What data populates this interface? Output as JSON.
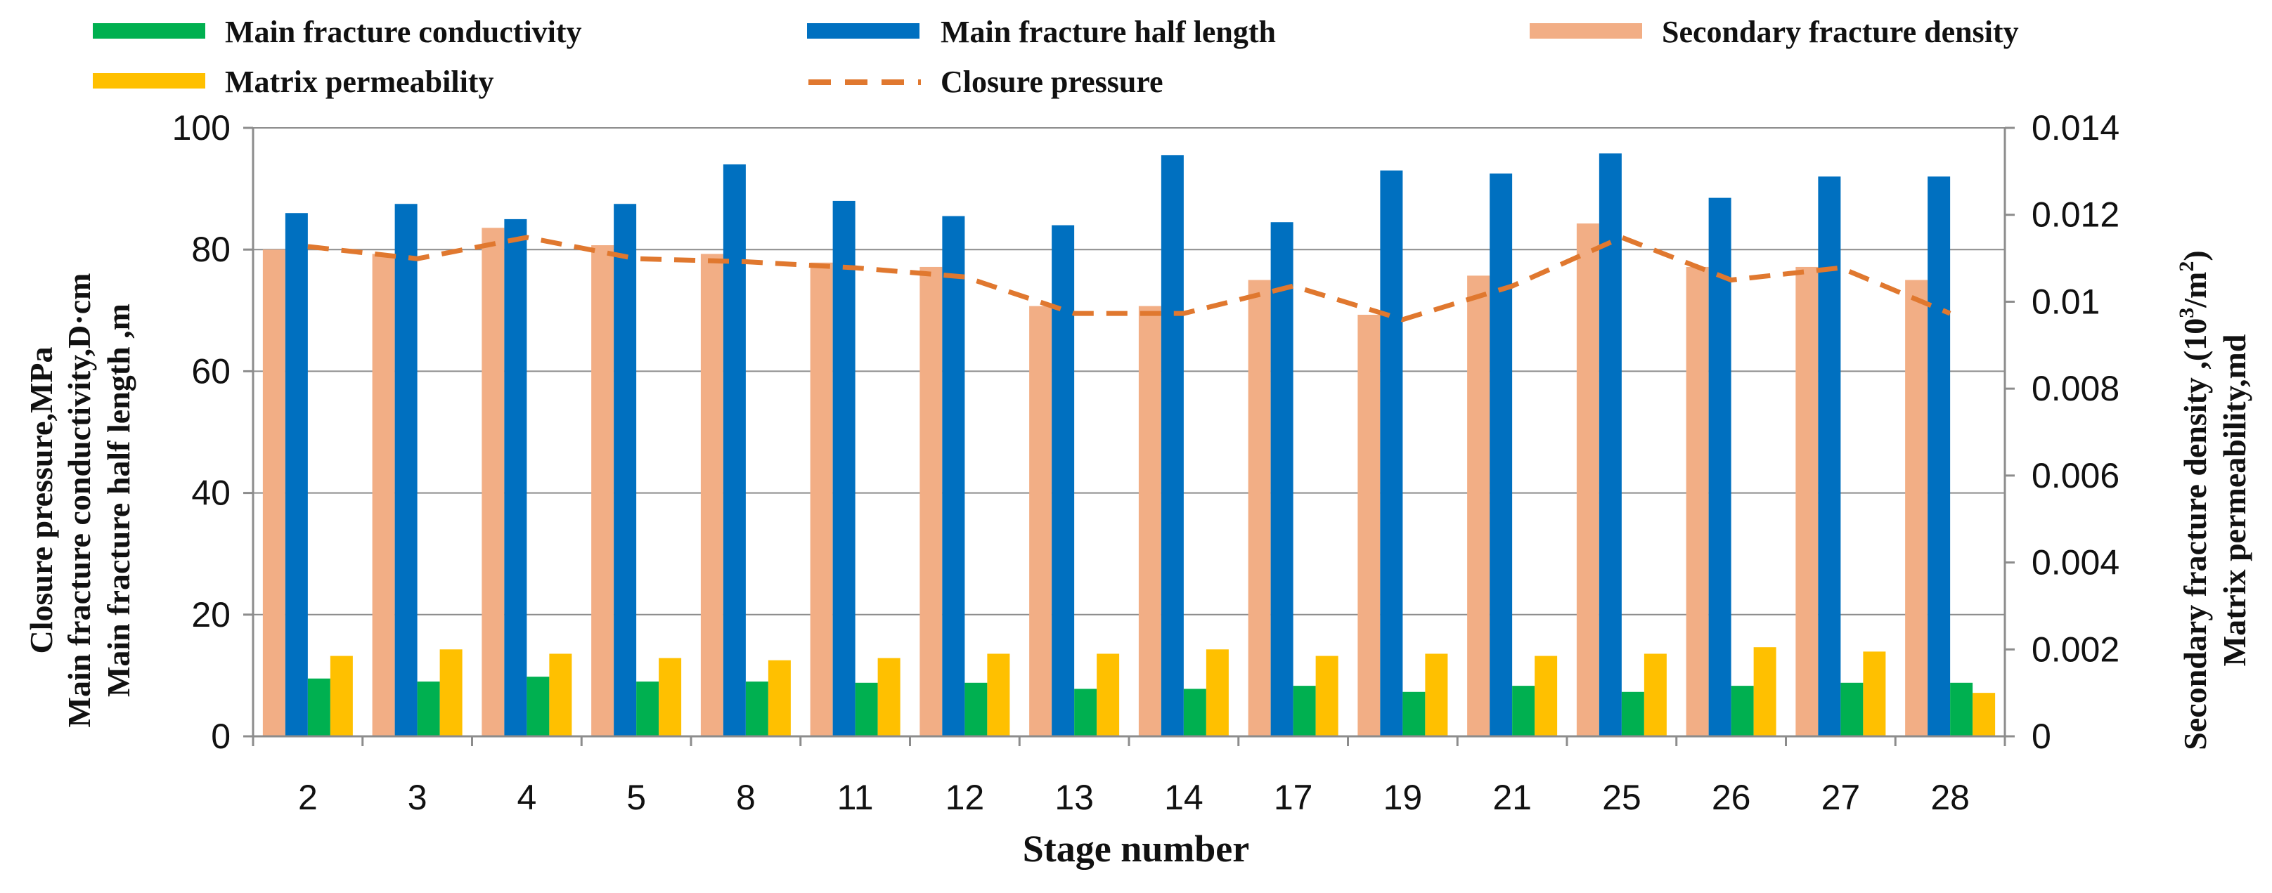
{
  "chart_data": {
    "type": "bar",
    "xlabel": "Stage number",
    "ylabel_left_lines": [
      "Closure pressure,MPa",
      "Main fracture conductivity,D·cm",
      "Main fracture half length ,m"
    ],
    "ylabel_right_prefix": "Secondary fracture density ,(10",
    "ylabel_right_sup": "3",
    "ylabel_right_suffix": "/m",
    "ylabel_right_sup2": "2",
    "ylabel_right_end": ")",
    "ylabel_right_line2": "Matrix permeability,md",
    "ylim_left": [
      0,
      100
    ],
    "ylim_right": [
      0,
      0.014
    ],
    "yticks_left": [
      "0",
      "20",
      "40",
      "60",
      "80",
      "100"
    ],
    "yticks_right": [
      "0",
      "0.002",
      "0.004",
      "0.006",
      "0.008",
      "0.01",
      "0.012",
      "0.014"
    ],
    "grid": true,
    "categories": [
      "2",
      "3",
      "4",
      "5",
      "8",
      "11",
      "12",
      "13",
      "14",
      "17",
      "19",
      "21",
      "25",
      "26",
      "27",
      "28"
    ],
    "series": [
      {
        "name": "Secondary fracture density",
        "axis": "right",
        "kind": "bar",
        "color": "#F2AE85",
        "values": [
          0.0112,
          0.0111,
          0.0117,
          0.0113,
          0.0111,
          0.0109,
          0.0108,
          0.0099,
          0.0099,
          0.0105,
          0.0097,
          0.0106,
          0.0118,
          0.0108,
          0.0108,
          0.0105
        ]
      },
      {
        "name": "Main fracture half length",
        "axis": "left",
        "kind": "bar",
        "color": "#0070C0",
        "values": [
          86,
          87.5,
          85,
          87.5,
          94,
          88,
          85.5,
          84,
          95.5,
          84.5,
          93,
          92.5,
          95.8,
          88.5,
          92,
          92
        ]
      },
      {
        "name": "Main fracture conductivity",
        "axis": "left",
        "kind": "bar",
        "color": "#00B050",
        "values": [
          9.5,
          9,
          9.8,
          9,
          9,
          8.8,
          8.8,
          7.8,
          7.8,
          8.3,
          7.3,
          8.3,
          7.3,
          8.3,
          8.8,
          8.8
        ]
      },
      {
        "name": "Matrix permeability",
        "axis": "right",
        "kind": "bar",
        "color": "#FFC000",
        "values": [
          0.00185,
          0.002,
          0.0019,
          0.0018,
          0.00175,
          0.0018,
          0.0019,
          0.0019,
          0.002,
          0.00185,
          0.0019,
          0.00185,
          0.0019,
          0.00205,
          0.00195,
          0.001
        ]
      },
      {
        "name": "Closure pressure",
        "axis": "left",
        "kind": "line",
        "style": "dashed",
        "color": "#E0782F",
        "values": [
          80.5,
          78.5,
          82,
          78.5,
          78,
          77,
          75.5,
          69.5,
          69.5,
          74,
          68.5,
          74,
          82,
          75,
          77,
          69.5
        ]
      }
    ],
    "legend": {
      "placement": "top",
      "rows": [
        [
          "Main fracture conductivity",
          "Main fracture half length",
          "Secondary fracture density"
        ],
        [
          "Matrix permeability",
          "Closure pressure"
        ]
      ]
    }
  }
}
